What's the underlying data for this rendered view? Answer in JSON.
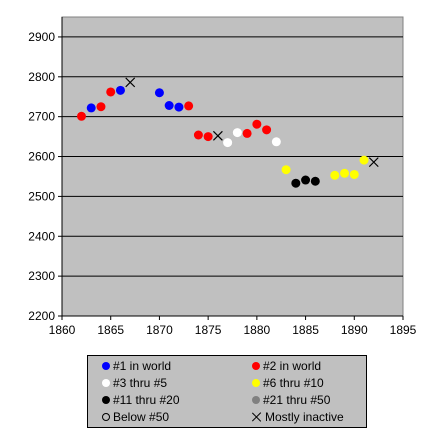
{
  "chart_data": {
    "type": "scatter",
    "xlim": [
      1860,
      1895
    ],
    "ylim": [
      2200,
      2950
    ],
    "x_ticks": [
      1860,
      1865,
      1870,
      1875,
      1880,
      1885,
      1890,
      1895
    ],
    "y_ticks": [
      2200,
      2300,
      2400,
      2500,
      2600,
      2700,
      2800,
      2900
    ],
    "grid": "horizontal",
    "plot_background": "#c0c0c0",
    "legend_position": "bottom",
    "series": [
      {
        "name": "#1 in world",
        "color": "#0000ff",
        "marker": "dot",
        "points": [
          [
            1863,
            2722
          ],
          [
            1866,
            2766
          ],
          [
            1870,
            2760
          ],
          [
            1871,
            2728
          ],
          [
            1872,
            2724
          ]
        ]
      },
      {
        "name": "#2 in world",
        "color": "#ff0000",
        "marker": "dot",
        "points": [
          [
            1862,
            2701
          ],
          [
            1864,
            2725
          ],
          [
            1865,
            2762
          ],
          [
            1873,
            2727
          ],
          [
            1874,
            2654
          ],
          [
            1875,
            2650
          ],
          [
            1879,
            2658
          ],
          [
            1880,
            2681
          ],
          [
            1881,
            2667
          ]
        ]
      },
      {
        "name": "#3 thru #5",
        "color": "#ffffff",
        "marker": "dot",
        "points": [
          [
            1877,
            2635
          ],
          [
            1878,
            2660
          ],
          [
            1882,
            2637
          ]
        ]
      },
      {
        "name": "#6 thru #10",
        "color": "#ffff00",
        "marker": "dot",
        "points": [
          [
            1883,
            2567
          ],
          [
            1888,
            2553
          ],
          [
            1889,
            2558
          ],
          [
            1890,
            2555
          ],
          [
            1891,
            2591
          ]
        ]
      },
      {
        "name": "#11 thru #20",
        "color": "#000000",
        "marker": "dot",
        "points": [
          [
            1884,
            2533
          ],
          [
            1885,
            2541
          ],
          [
            1886,
            2538
          ]
        ]
      },
      {
        "name": "#21 thru #50",
        "color": "#808080",
        "marker": "dot",
        "points": []
      },
      {
        "name": "Below #50",
        "color": "#000000",
        "marker": "hollow",
        "points": []
      },
      {
        "name": "Mostly inactive",
        "color": "#000000",
        "marker": "cross",
        "points": [
          [
            1867,
            2786
          ],
          [
            1876,
            2652
          ],
          [
            1892,
            2586
          ]
        ]
      }
    ]
  },
  "legend": {
    "items": [
      {
        "label": "#1 in world",
        "color": "#0000ff",
        "marker": "dot"
      },
      {
        "label": "#2 in world",
        "color": "#ff0000",
        "marker": "dot"
      },
      {
        "label": "#3 thru #5",
        "color": "#ffffff",
        "marker": "dot"
      },
      {
        "label": "#6 thru #10",
        "color": "#ffff00",
        "marker": "dot"
      },
      {
        "label": "#11 thru #20",
        "color": "#000000",
        "marker": "dot"
      },
      {
        "label": "#21 thru #50",
        "color": "#808080",
        "marker": "dot"
      },
      {
        "label": "Below #50",
        "color": "#000000",
        "marker": "hollow"
      },
      {
        "label": "Mostly inactive",
        "color": "#000000",
        "marker": "cross"
      }
    ]
  }
}
